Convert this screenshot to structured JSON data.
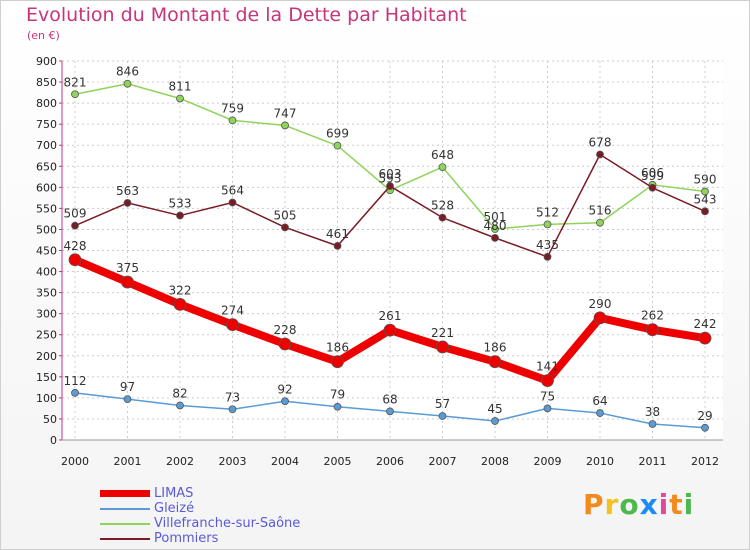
{
  "title": "Evolution du Montant de la Dette par Habitant",
  "subtitle": "(en €)",
  "logo": [
    "P",
    "r",
    "o",
    "x",
    "i",
    "t",
    "i"
  ],
  "logo_colors": [
    "#f28a1d",
    "#f2c21d",
    "#4db84d",
    "#1d8cf2",
    "#e04a9a",
    "#f28a1d",
    "#4db84d"
  ],
  "chart_data": {
    "type": "line",
    "x": [
      2000,
      2001,
      2002,
      2003,
      2004,
      2005,
      2006,
      2007,
      2008,
      2009,
      2010,
      2011,
      2012
    ],
    "ylim": [
      0,
      900
    ],
    "yticks": [
      0,
      50,
      100,
      150,
      200,
      250,
      300,
      350,
      400,
      450,
      500,
      550,
      600,
      650,
      700,
      750,
      800,
      850,
      900
    ],
    "grid": true,
    "legend_position": "bottom-left",
    "series": [
      {
        "name": "LIMAS",
        "color": "#ee0000",
        "values": [
          428,
          375,
          322,
          274,
          228,
          186,
          261,
          221,
          186,
          141,
          290,
          262,
          242
        ],
        "labels": [
          "428",
          "375",
          "322",
          "274",
          "228",
          "186",
          "261",
          "221",
          "186",
          "141",
          "290",
          "262",
          "242"
        ]
      },
      {
        "name": "Gleizé",
        "color": "#5a9bd4",
        "values": [
          112,
          97,
          82,
          73,
          92,
          79,
          68,
          57,
          45,
          75,
          64,
          38,
          29
        ],
        "labels": [
          "112",
          "97",
          "82",
          "73",
          "92",
          "79",
          "68",
          "57",
          "45",
          "75",
          "64",
          "38",
          "29"
        ]
      },
      {
        "name": "Villefranche-sur-Saône",
        "color": "#8fd45a",
        "values": [
          821,
          846,
          811,
          759,
          747,
          699,
          593,
          648,
          501,
          512,
          516,
          606,
          590
        ],
        "labels": [
          "821",
          "846",
          "811",
          "759",
          "747",
          "699",
          "593",
          "648",
          "501",
          "512",
          "516",
          "606",
          "590"
        ]
      },
      {
        "name": "Pommiers",
        "color": "#7a1c26",
        "values": [
          509,
          563,
          533,
          564,
          505,
          461,
          603,
          528,
          480,
          435,
          678,
          599,
          543
        ],
        "labels": [
          "509",
          "563",
          "533",
          "564",
          "505",
          "461",
          "603",
          "528",
          "480",
          "435",
          "678",
          "599",
          "543"
        ]
      }
    ]
  }
}
